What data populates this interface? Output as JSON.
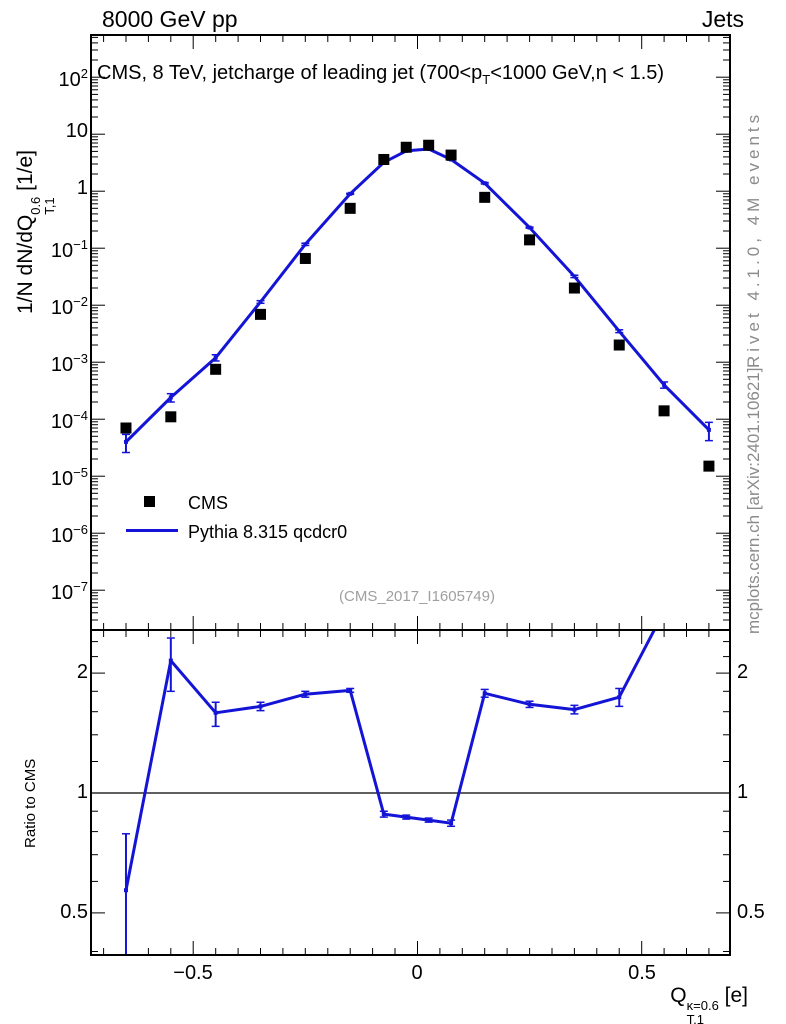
{
  "header": {
    "left": "8000 GeV pp",
    "right": "Jets"
  },
  "title": {
    "plain": "CMS, 8 TeV, jetcharge of leading jet (700<pT<1000 GeV,η < 1.5)",
    "parts": [
      {
        "t": "CMS, 8 TeV, jetcharge of leading jet (700<p"
      },
      {
        "t": "T",
        "s": "sub"
      },
      {
        "t": "<1000 GeV,η < 1.5)"
      }
    ]
  },
  "watermark": "(CMS_2017_I1605749)",
  "side_notes": {
    "rivet": "Rivet 4.1.0,  4M events",
    "site": "mcplots.cern.ch [arXiv:2401.10621]",
    "color": "#8b8b8b"
  },
  "legend": {
    "items": [
      {
        "label": "CMS",
        "marker": "filled-square",
        "color": "#000000"
      },
      {
        "label": "Pythia 8.315 qcdcr0",
        "marker": "line",
        "color": "#1414d7"
      }
    ]
  },
  "axis_labels": {
    "main_y_parts": [
      {
        "t": "1/N dN/dQ"
      },
      {
        "stack": {
          "top": "0.6",
          "bot": "T,1"
        }
      },
      {
        "t": " [1/e]"
      }
    ],
    "ratio_y": "Ratio to CMS",
    "x_parts": [
      {
        "t": "Q"
      },
      {
        "stack": {
          "top": "κ=0.6",
          "bot": "T,1"
        }
      },
      {
        "t": " [e]"
      }
    ]
  },
  "colors": {
    "mc_line": "#1414d7",
    "data_marker": "#000000",
    "frame": "#000000"
  },
  "chart_data": [
    {
      "type": "line",
      "panel": "main",
      "title": "CMS, 8 TeV, jetcharge of leading jet (700<pT<1000 GeV,η < 1.5)",
      "xlabel": "Q_T,1^(κ=0.6) [e]",
      "ylabel": "1/N dN/dQ_T,1^0.6 [1/e]",
      "yscale": "log",
      "xlim": [
        -0.728,
        0.697
      ],
      "ylim": [
        2e-08,
        550.0
      ],
      "x_major_ticks": [
        -0.5,
        0,
        0.5
      ],
      "x_minor_step": 0.05,
      "y_tick_exponents": [
        2,
        1,
        0,
        -1,
        -2,
        -3,
        -4,
        -5,
        -6,
        -7
      ],
      "x": [
        -0.65,
        -0.55,
        -0.45,
        -0.35,
        -0.25,
        -0.15,
        -0.075,
        -0.025,
        0.025,
        0.075,
        0.15,
        0.25,
        0.35,
        0.45,
        0.55,
        0.65
      ],
      "series": [
        {
          "name": "CMS",
          "type": "scatter",
          "marker": "filled-square",
          "color": "#000000",
          "y": [
            7e-05,
            0.00011,
            0.00075,
            0.0069,
            0.066,
            0.5,
            3.6,
            5.9,
            6.4,
            4.3,
            0.78,
            0.14,
            0.02,
            0.002,
            0.00014,
            1.5e-05
          ]
        },
        {
          "name": "Pythia 8.315 qcdcr0",
          "type": "line",
          "color": "#1414d7",
          "y": [
            4e-05,
            0.00024,
            0.0012,
            0.0114,
            0.117,
            0.9,
            3.2,
            5.1,
            5.5,
            3.6,
            1.38,
            0.23,
            0.032,
            0.0035,
            0.0004,
            6.5e-05
          ],
          "yerr_lo": [
            2.6e-05,
            0.0002,
            0.00105,
            0.0108,
            0.112,
            0.88,
            3.1,
            5.0,
            5.4,
            3.5,
            1.34,
            0.225,
            0.0305,
            0.0033,
            0.00035,
            4.2e-05
          ],
          "yerr_hi": [
            5.4e-05,
            0.00028,
            0.00135,
            0.012,
            0.122,
            0.92,
            3.3,
            5.2,
            5.6,
            3.7,
            1.42,
            0.235,
            0.0335,
            0.0037,
            0.00045,
            8.8e-05
          ]
        }
      ]
    },
    {
      "type": "line",
      "panel": "ratio",
      "ylabel": "Ratio to CMS",
      "yscale": "log",
      "ylim": [
        0.392,
        2.566
      ],
      "reference_line": 1,
      "y_labeled_ticks": [
        0.5,
        1,
        2
      ],
      "y_minor_ticks": [
        0.4,
        0.6,
        0.7,
        0.8,
        0.9,
        1.2,
        1.4,
        1.6,
        1.8,
        2.2,
        2.4
      ],
      "x": [
        -0.65,
        -0.55,
        -0.45,
        -0.35,
        -0.25,
        -0.15,
        -0.075,
        -0.025,
        0.025,
        0.075,
        0.15,
        0.25,
        0.35,
        0.45,
        0.55,
        0.65
      ],
      "series": [
        {
          "name": "Pythia 8.315 qcdcr0 / CMS",
          "type": "line",
          "color": "#1414d7",
          "y": [
            0.57,
            2.15,
            1.59,
            1.65,
            1.77,
            1.81,
            0.885,
            0.87,
            0.855,
            0.84,
            1.78,
            1.67,
            1.62,
            1.74,
            2.86,
            4.3
          ],
          "yerr_lo": [
            0.38,
            1.8,
            1.47,
            1.61,
            1.74,
            1.79,
            0.87,
            0.86,
            0.845,
            0.825,
            1.74,
            1.64,
            1.58,
            1.65,
            2.7,
            4.0
          ],
          "yerr_hi": [
            0.79,
            2.45,
            1.69,
            1.69,
            1.8,
            1.83,
            0.9,
            0.88,
            0.865,
            0.855,
            1.82,
            1.7,
            1.66,
            1.83,
            3.02,
            4.6
          ]
        }
      ]
    }
  ]
}
